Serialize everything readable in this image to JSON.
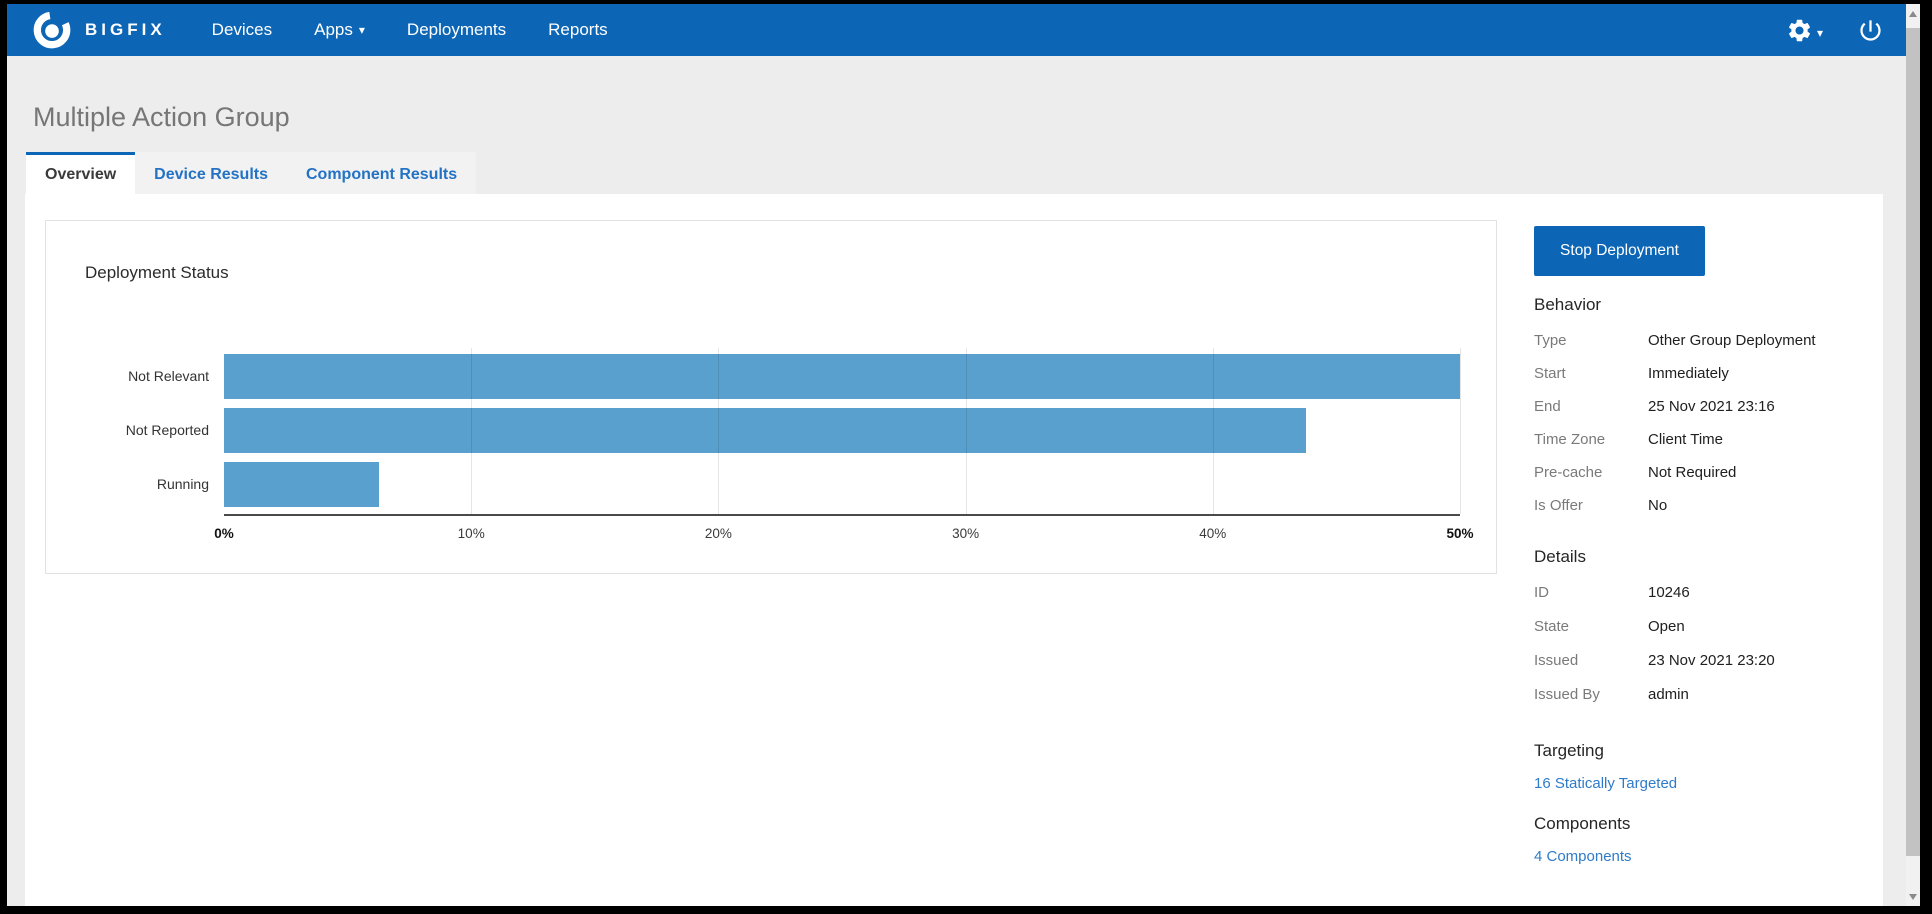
{
  "nav": {
    "brand": "BIGFIX",
    "items": [
      {
        "label": "Devices"
      },
      {
        "label": "Apps",
        "caret": "▾"
      },
      {
        "label": "Deployments"
      },
      {
        "label": "Reports"
      }
    ]
  },
  "header": {
    "title": "Multiple Action Group"
  },
  "tabs": [
    {
      "label": "Overview",
      "active": true
    },
    {
      "label": "Device Results",
      "active": false
    },
    {
      "label": "Component Results",
      "active": false
    }
  ],
  "chart_data": {
    "type": "bar",
    "orientation": "horizontal",
    "title": "Deployment Status",
    "categories": [
      "Not Relevant",
      "Not Reported",
      "Running"
    ],
    "values": [
      50,
      43.75,
      6.25
    ],
    "unit": "percent",
    "xlim": [
      0,
      50
    ],
    "x_ticks": [
      "0%",
      "10%",
      "20%",
      "30%",
      "40%",
      "50%"
    ],
    "bar_color": "#59A0CF",
    "grid": true,
    "legend": "none"
  },
  "sidebar": {
    "stop_button": "Stop Deployment",
    "behavior": {
      "heading": "Behavior",
      "rows": [
        [
          "Type",
          "Other Group Deployment"
        ],
        [
          "Start",
          "Immediately"
        ],
        [
          "End",
          "25 Nov 2021 23:16"
        ],
        [
          "Time Zone",
          "Client Time"
        ],
        [
          "Pre-cache",
          "Not Required"
        ],
        [
          "Is Offer",
          "No"
        ]
      ]
    },
    "details": {
      "heading": "Details",
      "rows": [
        [
          "ID",
          "10246"
        ],
        [
          "State",
          "Open"
        ],
        [
          "Issued",
          "23 Nov 2021 23:20"
        ],
        [
          "Issued By",
          "admin"
        ]
      ]
    },
    "targeting": {
      "heading": "Targeting",
      "link": "16 Statically Targeted"
    },
    "components": {
      "heading": "Components",
      "link": "4 Components"
    }
  },
  "colors": {
    "navbar": "#0D66B5",
    "accent_blue": "#0D66B5",
    "bar_blue": "#59A0CF",
    "link_blue": "#2E7BC9",
    "page_bg": "#EDEDED"
  }
}
